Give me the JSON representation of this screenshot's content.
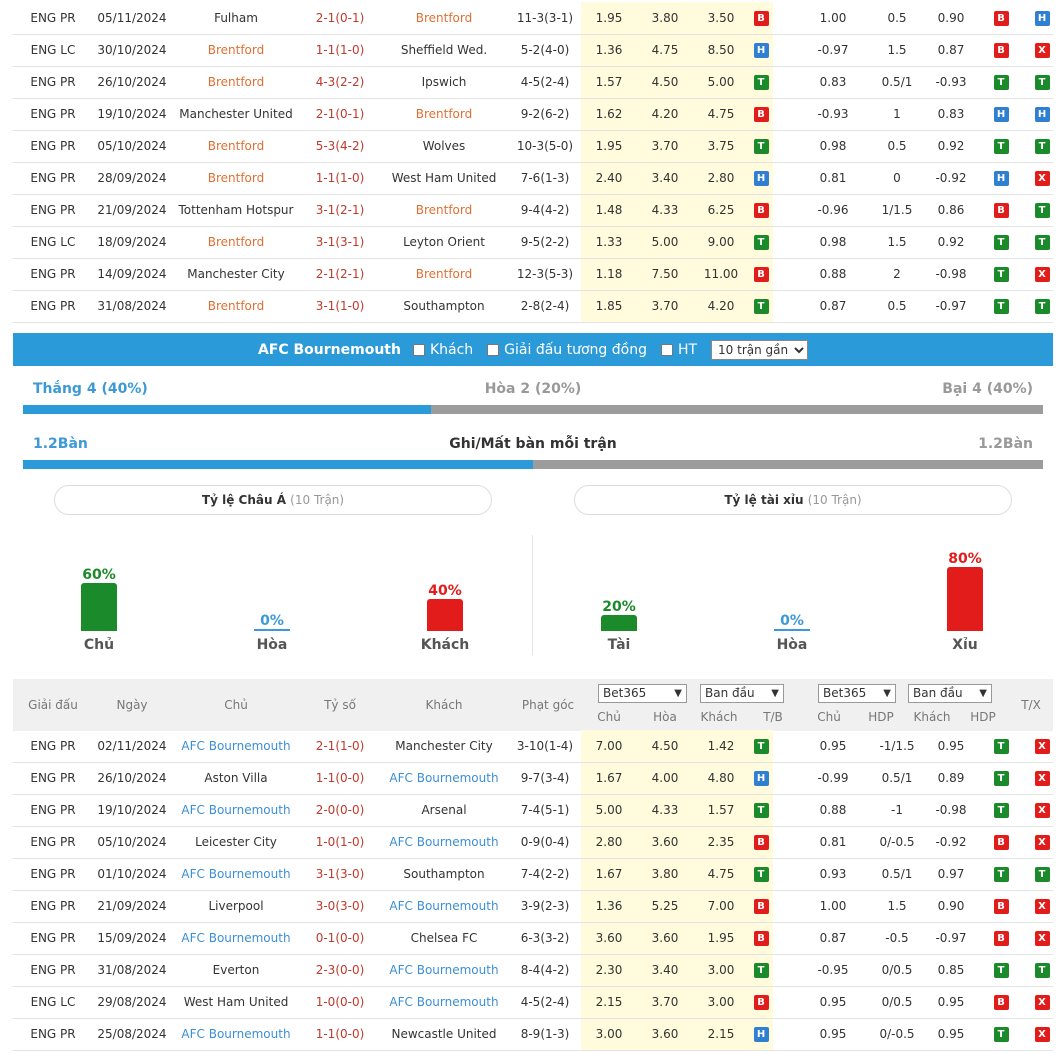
{
  "top_rows": [
    {
      "league": "ENG PR",
      "date": "05/11/2024",
      "home": "Fulham",
      "home_hl": false,
      "score": "2-1(0-1)",
      "away": "Brentford",
      "away_hl": true,
      "corner": "11-3(3-1)",
      "o1": "1.95",
      "o2": "3.80",
      "o3": "3.50",
      "tb": "B",
      "h1": "1.00",
      "h2": "0.5",
      "h3": "0.90",
      "b1": "B",
      "b2": "H"
    },
    {
      "league": "ENG LC",
      "date": "30/10/2024",
      "home": "Brentford",
      "home_hl": true,
      "score": "1-1(1-0)",
      "away": "Sheffield Wed.",
      "away_hl": false,
      "corner": "5-2(4-0)",
      "o1": "1.36",
      "o2": "4.75",
      "o3": "8.50",
      "tb": "H",
      "h1": "-0.97",
      "h2": "1.5",
      "h3": "0.87",
      "b1": "B",
      "b2": "X"
    },
    {
      "league": "ENG PR",
      "date": "26/10/2024",
      "home": "Brentford",
      "home_hl": true,
      "score": "4-3(2-2)",
      "away": "Ipswich",
      "away_hl": false,
      "corner": "4-5(2-4)",
      "o1": "1.57",
      "o2": "4.50",
      "o3": "5.00",
      "tb": "T",
      "h1": "0.83",
      "h2": "0.5/1",
      "h3": "-0.93",
      "b1": "T",
      "b2": "T"
    },
    {
      "league": "ENG PR",
      "date": "19/10/2024",
      "home": "Manchester United",
      "home_hl": false,
      "score": "2-1(0-1)",
      "away": "Brentford",
      "away_hl": true,
      "corner": "9-2(6-2)",
      "o1": "1.62",
      "o2": "4.20",
      "o3": "4.75",
      "tb": "B",
      "h1": "-0.93",
      "h2": "1",
      "h3": "0.83",
      "b1": "H",
      "b2": "H"
    },
    {
      "league": "ENG PR",
      "date": "05/10/2024",
      "home": "Brentford",
      "home_hl": true,
      "score": "5-3(4-2)",
      "away": "Wolves",
      "away_hl": false,
      "corner": "10-3(5-0)",
      "o1": "1.95",
      "o2": "3.70",
      "o3": "3.75",
      "tb": "T",
      "h1": "0.98",
      "h2": "0.5",
      "h3": "0.92",
      "b1": "T",
      "b2": "T"
    },
    {
      "league": "ENG PR",
      "date": "28/09/2024",
      "home": "Brentford",
      "home_hl": true,
      "score": "1-1(1-0)",
      "away": "West Ham United",
      "away_hl": false,
      "corner": "7-6(1-3)",
      "o1": "2.40",
      "o2": "3.40",
      "o3": "2.80",
      "tb": "H",
      "h1": "0.81",
      "h2": "0",
      "h3": "-0.92",
      "b1": "H",
      "b2": "X"
    },
    {
      "league": "ENG PR",
      "date": "21/09/2024",
      "home": "Tottenham Hotspur",
      "home_hl": false,
      "score": "3-1(2-1)",
      "away": "Brentford",
      "away_hl": true,
      "corner": "9-4(4-2)",
      "o1": "1.48",
      "o2": "4.33",
      "o3": "6.25",
      "tb": "B",
      "h1": "-0.96",
      "h2": "1/1.5",
      "h3": "0.86",
      "b1": "B",
      "b2": "T"
    },
    {
      "league": "ENG LC",
      "date": "18/09/2024",
      "home": "Brentford",
      "home_hl": true,
      "score": "3-1(3-1)",
      "away": "Leyton Orient",
      "away_hl": false,
      "corner": "9-5(2-2)",
      "o1": "1.33",
      "o2": "5.00",
      "o3": "9.00",
      "tb": "T",
      "h1": "0.98",
      "h2": "1.5",
      "h3": "0.92",
      "b1": "T",
      "b2": "T"
    },
    {
      "league": "ENG PR",
      "date": "14/09/2024",
      "home": "Manchester City",
      "home_hl": false,
      "score": "2-1(2-1)",
      "away": "Brentford",
      "away_hl": true,
      "corner": "12-3(5-3)",
      "o1": "1.18",
      "o2": "7.50",
      "o3": "11.00",
      "tb": "B",
      "h1": "0.88",
      "h2": "2",
      "h3": "-0.98",
      "b1": "T",
      "b2": "X"
    },
    {
      "league": "ENG PR",
      "date": "31/08/2024",
      "home": "Brentford",
      "home_hl": true,
      "score": "3-1(1-0)",
      "away": "Southampton",
      "away_hl": false,
      "corner": "2-8(2-4)",
      "o1": "1.85",
      "o2": "3.70",
      "o3": "4.20",
      "tb": "T",
      "h1": "0.87",
      "h2": "0.5",
      "h3": "-0.97",
      "b1": "T",
      "b2": "T"
    }
  ],
  "filter_bar": {
    "team": "AFC Bournemouth",
    "opt_away": "Khách",
    "opt_same_league": "Giải đấu tương đồng",
    "opt_ht": "HT",
    "select_value": "10 trận gần"
  },
  "record": {
    "win": "Thắng 4 (40%)",
    "draw": "Hòa 2 (20%)",
    "loss": "Bại 4 (40%)",
    "win_fraction": 0.4
  },
  "goals": {
    "left": "1.2Bàn",
    "title": "Ghi/Mất bàn mỗi trận",
    "right": "1.2Bàn",
    "fraction": 0.5
  },
  "asian": {
    "title": "Tỷ lệ Châu Á",
    "sub": "(10 Trận)",
    "cols": [
      {
        "pct": "60%",
        "label": "Chủ",
        "value": 60,
        "color": "#1a8a2a"
      },
      {
        "pct": "0%",
        "label": "Hòa",
        "value": 0,
        "color": "#3d9ad6"
      },
      {
        "pct": "40%",
        "label": "Khách",
        "value": 40,
        "color": "#e21b1b"
      }
    ]
  },
  "ou": {
    "title": "Tỷ lệ tài xỉu",
    "sub": "(10 Trận)",
    "cols": [
      {
        "pct": "20%",
        "label": "Tài",
        "value": 20,
        "color": "#1a8a2a"
      },
      {
        "pct": "0%",
        "label": "Hòa",
        "value": 0,
        "color": "#3d9ad6"
      },
      {
        "pct": "80%",
        "label": "Xỉu",
        "value": 80,
        "color": "#e21b1b"
      }
    ]
  },
  "table_header": {
    "league": "Giải đấu",
    "date": "Ngày",
    "home": "Chủ",
    "score": "Tỷ số",
    "away": "Khách",
    "corner": "Phạt góc",
    "sel1": "Bet365",
    "sel2": "Ban đầu",
    "sel3": "Bet365",
    "sel4": "Ban đầu",
    "s_home": "Chủ",
    "s_draw": "Hòa",
    "s_away": "Khách",
    "s_tb": "T/B",
    "s_home2": "Chủ",
    "s_hdp": "HDP",
    "s_away2": "Khách",
    "s_hdp2": "HDP",
    "tx": "T/X"
  },
  "bottom_rows": [
    {
      "league": "ENG PR",
      "date": "02/11/2024",
      "home": "AFC Bournemouth",
      "home_hl": true,
      "score": "2-1(1-0)",
      "away": "Manchester City",
      "away_hl": false,
      "corner": "3-10(1-4)",
      "o1": "7.00",
      "o2": "4.50",
      "o3": "1.42",
      "tb": "T",
      "h1": "0.95",
      "h2": "-1/1.5",
      "h3": "0.95",
      "b1": "T",
      "b2": "X"
    },
    {
      "league": "ENG PR",
      "date": "26/10/2024",
      "home": "Aston Villa",
      "home_hl": false,
      "score": "1-1(0-0)",
      "away": "AFC Bournemouth",
      "away_hl": true,
      "corner": "9-7(3-4)",
      "o1": "1.67",
      "o2": "4.00",
      "o3": "4.80",
      "tb": "H",
      "h1": "-0.99",
      "h2": "0.5/1",
      "h3": "0.89",
      "b1": "T",
      "b2": "X"
    },
    {
      "league": "ENG PR",
      "date": "19/10/2024",
      "home": "AFC Bournemouth",
      "home_hl": true,
      "score": "2-0(0-0)",
      "away": "Arsenal",
      "away_hl": false,
      "corner": "7-4(5-1)",
      "o1": "5.00",
      "o2": "4.33",
      "o3": "1.57",
      "tb": "T",
      "h1": "0.88",
      "h2": "-1",
      "h3": "-0.98",
      "b1": "T",
      "b2": "X"
    },
    {
      "league": "ENG PR",
      "date": "05/10/2024",
      "home": "Leicester City",
      "home_hl": false,
      "score": "1-0(1-0)",
      "away": "AFC Bournemouth",
      "away_hl": true,
      "corner": "0-9(0-4)",
      "o1": "2.80",
      "o2": "3.60",
      "o3": "2.35",
      "tb": "B",
      "h1": "0.81",
      "h2": "0/-0.5",
      "h3": "-0.92",
      "b1": "B",
      "b2": "X"
    },
    {
      "league": "ENG PR",
      "date": "01/10/2024",
      "home": "AFC Bournemouth",
      "home_hl": true,
      "score": "3-1(3-0)",
      "away": "Southampton",
      "away_hl": false,
      "corner": "7-4(2-2)",
      "o1": "1.67",
      "o2": "3.80",
      "o3": "4.75",
      "tb": "T",
      "h1": "0.93",
      "h2": "0.5/1",
      "h3": "0.97",
      "b1": "T",
      "b2": "T"
    },
    {
      "league": "ENG PR",
      "date": "21/09/2024",
      "home": "Liverpool",
      "home_hl": false,
      "score": "3-0(3-0)",
      "away": "AFC Bournemouth",
      "away_hl": true,
      "corner": "3-9(2-3)",
      "o1": "1.36",
      "o2": "5.25",
      "o3": "7.00",
      "tb": "B",
      "h1": "1.00",
      "h2": "1.5",
      "h3": "0.90",
      "b1": "B",
      "b2": "X"
    },
    {
      "league": "ENG PR",
      "date": "15/09/2024",
      "home": "AFC Bournemouth",
      "home_hl": true,
      "score": "0-1(0-0)",
      "away": "Chelsea FC",
      "away_hl": false,
      "corner": "6-3(3-2)",
      "o1": "3.60",
      "o2": "3.60",
      "o3": "1.95",
      "tb": "B",
      "h1": "0.87",
      "h2": "-0.5",
      "h3": "-0.97",
      "b1": "B",
      "b2": "X"
    },
    {
      "league": "ENG PR",
      "date": "31/08/2024",
      "home": "Everton",
      "home_hl": false,
      "score": "2-3(0-0)",
      "away": "AFC Bournemouth",
      "away_hl": true,
      "corner": "8-4(4-2)",
      "o1": "2.30",
      "o2": "3.40",
      "o3": "3.00",
      "tb": "T",
      "h1": "-0.95",
      "h2": "0/0.5",
      "h3": "0.85",
      "b1": "T",
      "b2": "T"
    },
    {
      "league": "ENG LC",
      "date": "29/08/2024",
      "home": "West Ham United",
      "home_hl": false,
      "score": "1-0(0-0)",
      "away": "AFC Bournemouth",
      "away_hl": true,
      "corner": "4-5(2-4)",
      "o1": "2.15",
      "o2": "3.70",
      "o3": "3.00",
      "tb": "B",
      "h1": "0.95",
      "h2": "0/0.5",
      "h3": "0.95",
      "b1": "B",
      "b2": "X"
    },
    {
      "league": "ENG PR",
      "date": "25/08/2024",
      "home": "AFC Bournemouth",
      "home_hl": true,
      "score": "1-1(0-0)",
      "away": "Newcastle United",
      "away_hl": false,
      "corner": "8-9(1-3)",
      "o1": "3.00",
      "o2": "3.60",
      "o3": "2.15",
      "tb": "H",
      "h1": "0.95",
      "h2": "0/-0.5",
      "h3": "0.95",
      "b1": "T",
      "b2": "X"
    }
  ]
}
